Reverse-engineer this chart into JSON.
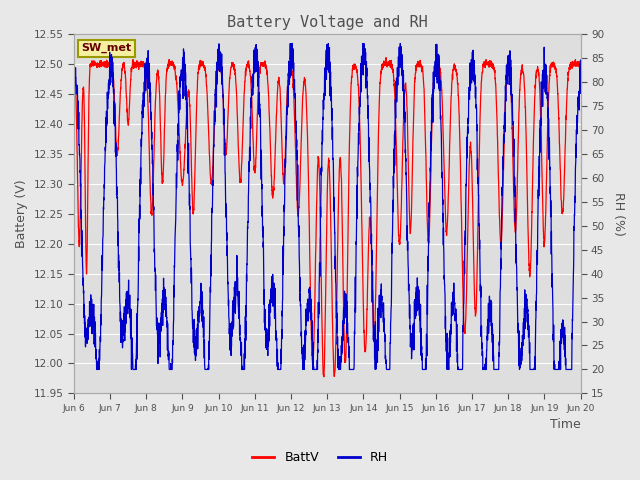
{
  "title": "Battery Voltage and RH",
  "xlabel": "Time",
  "ylabel_left": "Battery (V)",
  "ylabel_right": "RH (%)",
  "xtick_labels": [
    "Jun 6",
    "Jun 7",
    "Jun 8",
    "Jun 9",
    "Jun 10",
    "Jun 11",
    "Jun 12",
    "Jun 13",
    "Jun 14",
    "Jun 15",
    "Jun 16",
    "Jun 17",
    "Jun 18",
    "Jun 19",
    "Jun 20"
  ],
  "yticks_left": [
    11.95,
    12.0,
    12.05,
    12.1,
    12.15,
    12.2,
    12.25,
    12.3,
    12.35,
    12.4,
    12.45,
    12.5,
    12.55
  ],
  "yticks_right": [
    15,
    20,
    25,
    30,
    35,
    40,
    45,
    50,
    55,
    60,
    65,
    70,
    75,
    80,
    85,
    90
  ],
  "station_label": "SW_met",
  "fig_facecolor": "#e8e8e8",
  "plot_facecolor": "#dedede",
  "grid_color": "#ffffff",
  "batt_color": "#ff0000",
  "rh_color": "#0000cc",
  "title_color": "#505050",
  "label_color": "#505050",
  "tick_color": "#505050",
  "legend_batt": "BattV",
  "legend_rh": "RH",
  "ylim_left": [
    11.95,
    12.55
  ],
  "ylim_right": [
    15,
    90
  ],
  "xlim": [
    0,
    14
  ]
}
